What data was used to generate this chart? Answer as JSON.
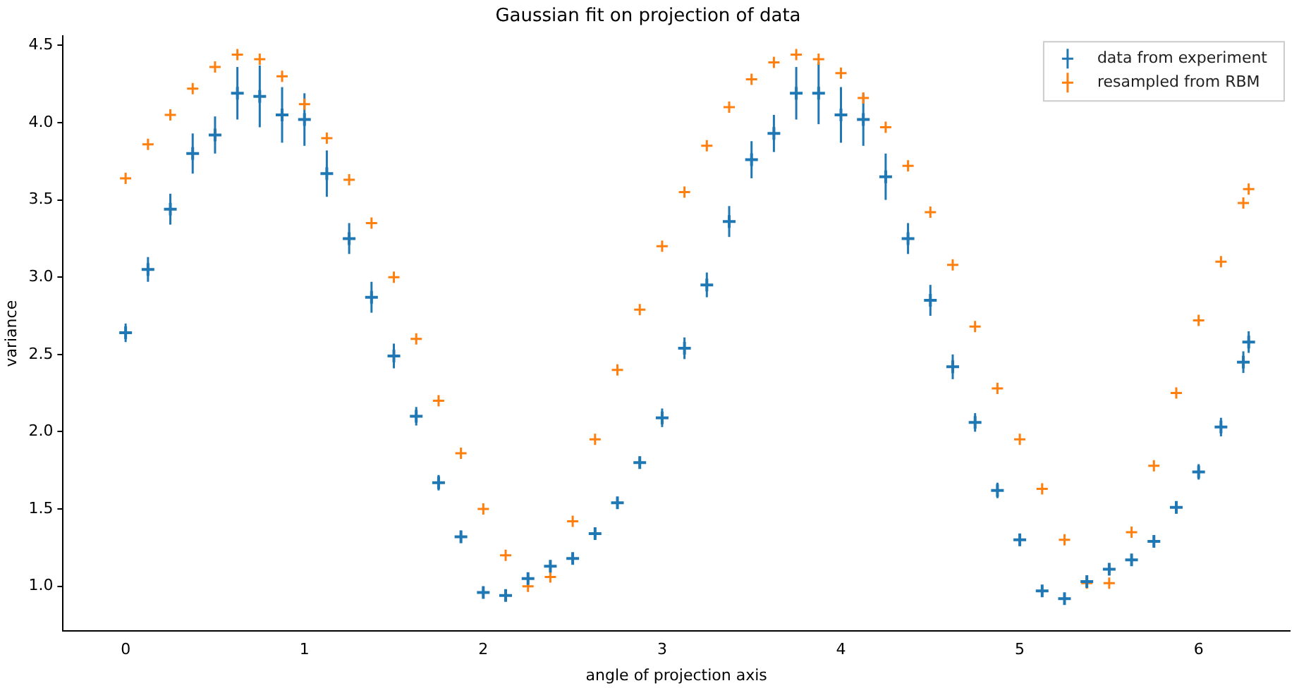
{
  "chart_data": {
    "type": "scatter",
    "title": "Gaussian fit on projection of data",
    "xlabel": "angle of projection axis",
    "ylabel": "variance",
    "x": [
      0,
      0.125,
      0.25,
      0.375,
      0.5,
      0.625,
      0.75,
      0.875,
      1.0,
      1.125,
      1.25,
      1.375,
      1.5,
      1.625,
      1.75,
      1.875,
      2.0,
      2.125,
      2.25,
      2.375,
      2.5,
      2.625,
      2.75,
      2.875,
      3.0,
      3.125,
      3.25,
      3.375,
      3.5,
      3.625,
      3.75,
      3.875,
      4.0,
      4.125,
      4.25,
      4.375,
      4.5,
      4.625,
      4.75,
      4.875,
      5.0,
      5.125,
      5.25,
      5.375,
      5.5,
      5.625,
      5.75,
      5.875,
      6.0,
      6.125,
      6.25,
      6.28
    ],
    "series": [
      {
        "name": "data from experiment",
        "color": "#1f77b4",
        "values": [
          2.64,
          3.05,
          3.44,
          3.8,
          3.92,
          4.19,
          4.17,
          4.05,
          4.02,
          3.67,
          3.25,
          2.87,
          2.49,
          2.1,
          1.67,
          1.32,
          0.96,
          0.94,
          1.05,
          1.13,
          1.18,
          1.34,
          1.54,
          1.8,
          2.09,
          2.54,
          2.95,
          3.36,
          3.76,
          3.93,
          4.19,
          4.19,
          4.05,
          4.02,
          3.65,
          3.25,
          2.85,
          2.42,
          2.06,
          1.62,
          1.3,
          0.97,
          0.92,
          1.03,
          1.11,
          1.17,
          1.29,
          1.51,
          1.74,
          2.03,
          2.45,
          2.58
        ],
        "errors": [
          0.06,
          0.08,
          0.1,
          0.13,
          0.12,
          0.17,
          0.2,
          0.18,
          0.17,
          0.15,
          0.1,
          0.1,
          0.08,
          0.06,
          0.05,
          0.04,
          0.03,
          0.03,
          0.03,
          0.03,
          0.03,
          0.03,
          0.03,
          0.04,
          0.06,
          0.07,
          0.08,
          0.1,
          0.12,
          0.12,
          0.17,
          0.2,
          0.18,
          0.17,
          0.15,
          0.1,
          0.1,
          0.08,
          0.06,
          0.05,
          0.04,
          0.03,
          0.03,
          0.03,
          0.03,
          0.03,
          0.03,
          0.04,
          0.05,
          0.06,
          0.07,
          0.07
        ]
      },
      {
        "name": "resampled from RBM",
        "color": "#ff7f0e",
        "values": [
          3.64,
          3.86,
          4.05,
          4.22,
          4.36,
          4.44,
          4.41,
          4.3,
          4.12,
          3.9,
          3.63,
          3.35,
          3.0,
          2.6,
          2.2,
          1.86,
          1.5,
          1.2,
          1.0,
          1.06,
          1.42,
          1.95,
          2.4,
          2.79,
          3.2,
          3.55,
          3.85,
          4.1,
          4.28,
          4.39,
          4.44,
          4.41,
          4.32,
          4.16,
          3.97,
          3.72,
          3.42,
          3.08,
          2.68,
          2.28,
          1.95,
          1.63,
          1.3,
          1.02,
          1.02,
          1.35,
          1.78,
          2.25,
          2.72,
          3.1,
          3.48,
          3.57
        ]
      }
    ],
    "xlim": [
      -0.35,
      6.51
    ],
    "xticks": [
      0,
      1,
      2,
      3,
      4,
      5,
      6
    ],
    "ylim": [
      0.71,
      4.56
    ],
    "yticks": [
      {
        "value": 1,
        "label": "1.0"
      },
      {
        "value": 1.5,
        "label": "1.5"
      },
      {
        "value": 2,
        "label": "2.0"
      },
      {
        "value": 2.5,
        "label": "2.5"
      },
      {
        "value": 3,
        "label": "3.0"
      },
      {
        "value": 3.5,
        "label": "3.5"
      },
      {
        "value": 4,
        "label": "4.0"
      },
      {
        "value": 4.5,
        "label": "4.5"
      }
    ],
    "marker": "cross",
    "legend": "top right"
  }
}
